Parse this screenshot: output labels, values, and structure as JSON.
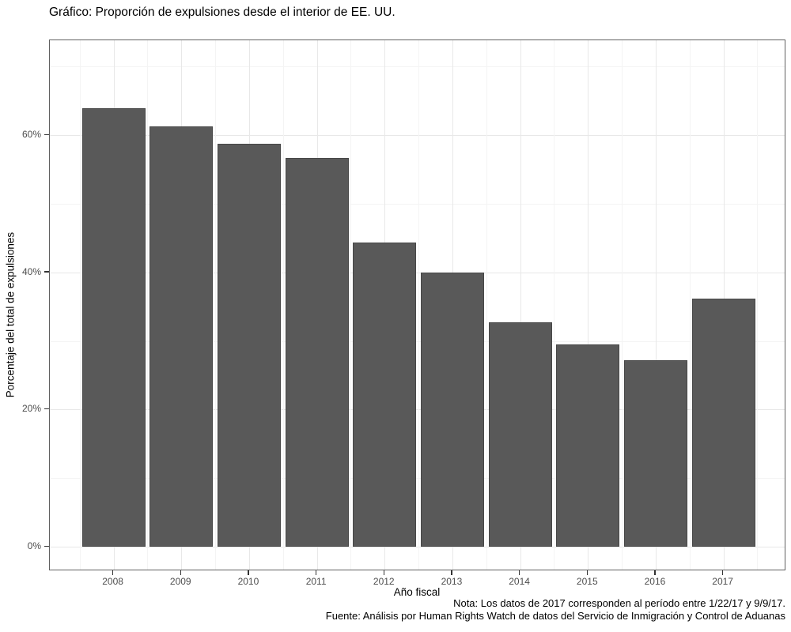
{
  "title": "Gráfico: Proporción de expulsiones desde el interior de EE. UU.",
  "caption": {
    "note": "Nota: Los datos de 2017 corresponden al período entre 1/22/17 y 9/9/17.",
    "source": "Fuente: Análisis por Human Rights Watch de datos del Servicio de Inmigración y Control de Aduanas"
  },
  "colors": {
    "bar": "#595959",
    "bar_border": "#474747",
    "grid_major": "#e8e8e8",
    "grid_minor": "#f4f4f4",
    "panel_border": "#606060",
    "tick": "#333333",
    "tick_label": "#4d4d4d",
    "text": "#000000",
    "background": "#ffffff"
  },
  "chart_data": {
    "type": "bar",
    "title": "Gráfico: Proporción de expulsiones desde el interior de EE. UU.",
    "xlabel": "Año fiscal",
    "ylabel": "Porcentaje del total de expulsiones",
    "categories": [
      "2008",
      "2009",
      "2010",
      "2011",
      "2012",
      "2013",
      "2014",
      "2015",
      "2016",
      "2017"
    ],
    "values": [
      63.9,
      61.3,
      58.7,
      56.7,
      44.3,
      40.0,
      32.7,
      29.5,
      27.2,
      36.2
    ],
    "value_unit": "%",
    "ylim": [
      -3.6,
      73.8
    ],
    "yticks": [
      {
        "value": 0,
        "label": "0%"
      },
      {
        "value": 20,
        "label": "20%"
      },
      {
        "value": 40,
        "label": "40%"
      },
      {
        "value": 60,
        "label": "60%"
      }
    ],
    "yticks_minor": [
      10,
      30,
      50,
      70
    ],
    "grid": "major and minor, very light grey on white panel",
    "legend": "none",
    "bar_color": "#595959"
  }
}
